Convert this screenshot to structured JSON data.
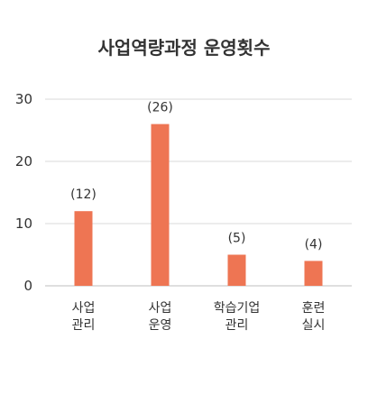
{
  "chart_data": {
    "type": "bar",
    "title": "사업역량과정 운영횟수",
    "categories": [
      [
        "사업",
        "관리"
      ],
      [
        "사업",
        "운영"
      ],
      [
        "학습기업",
        "관리"
      ],
      [
        "훈련",
        "실시"
      ]
    ],
    "values": [
      12,
      26,
      5,
      4
    ],
    "data_labels": [
      "(12)",
      "(26)",
      "(5)",
      "(4)"
    ],
    "ylim": [
      0,
      30
    ],
    "yticks": [
      0,
      10,
      20,
      30
    ],
    "grid": true,
    "legend": "none",
    "bar_color": "#ee7553"
  }
}
